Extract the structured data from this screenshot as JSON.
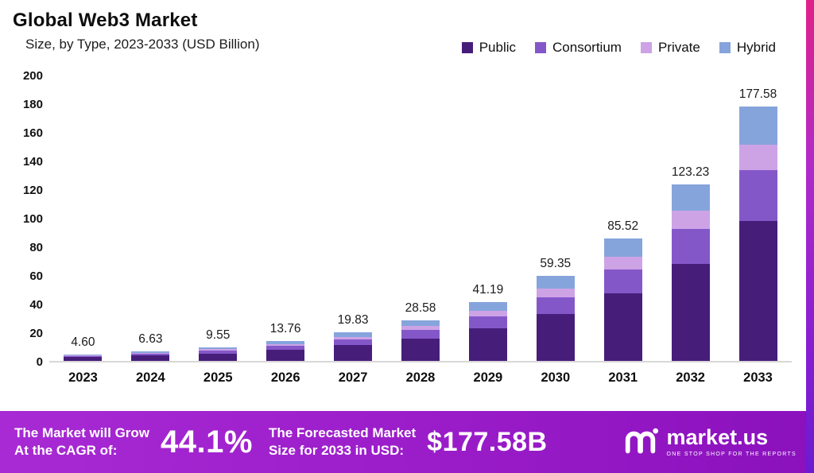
{
  "header": {
    "title": "Global Web3 Market",
    "subtitle": "Size, by Type, 2023-2033 (USD Billion)"
  },
  "legend": [
    {
      "label": "Public",
      "color": "#471d7a"
    },
    {
      "label": "Consortium",
      "color": "#8457c9"
    },
    {
      "label": "Private",
      "color": "#cda3e6"
    },
    {
      "label": "Hybrid",
      "color": "#86a4dc"
    }
  ],
  "chart_data": {
    "type": "bar",
    "stacked": true,
    "title": "Global Web3 Market Size, by Type, 2023-2033 (USD Billion)",
    "xlabel": "",
    "ylabel": "USD Billion",
    "ylim": [
      0,
      200
    ],
    "ytick_step": 20,
    "grid": false,
    "legend_position": "top-right",
    "categories": [
      "2023",
      "2024",
      "2025",
      "2026",
      "2027",
      "2028",
      "2029",
      "2030",
      "2031",
      "2032",
      "2033"
    ],
    "series": [
      {
        "name": "Public",
        "color": "#471d7a",
        "values": [
          2.53,
          3.65,
          5.25,
          7.57,
          10.91,
          15.72,
          22.65,
          32.64,
          47.04,
          67.78,
          97.67
        ]
      },
      {
        "name": "Consortium",
        "color": "#8457c9",
        "values": [
          0.92,
          1.33,
          1.91,
          2.75,
          3.97,
          5.72,
          8.24,
          11.87,
          17.1,
          24.65,
          35.52
        ]
      },
      {
        "name": "Private",
        "color": "#cda3e6",
        "values": [
          0.46,
          0.66,
          0.96,
          1.38,
          1.98,
          2.86,
          4.12,
          5.94,
          8.55,
          12.32,
          17.76
        ]
      },
      {
        "name": "Hybrid",
        "color": "#86a4dc",
        "values": [
          0.69,
          0.99,
          1.43,
          2.06,
          2.97,
          4.28,
          6.18,
          8.9,
          12.83,
          18.48,
          26.63
        ]
      }
    ],
    "totals": [
      "4.60",
      "6.63",
      "9.55",
      "13.76",
      "19.83",
      "28.58",
      "41.19",
      "59.35",
      "85.52",
      "123.23",
      "177.58"
    ]
  },
  "banner": {
    "cagr_label_line1": "The Market will Grow",
    "cagr_label_line2": "At the CAGR of:",
    "cagr_value": "44.1%",
    "forecast_label_line1": "The Forecasted Market",
    "forecast_label_line2": "Size for 2033 in USD:",
    "forecast_value": "$177.58B",
    "brand": "market.us",
    "brand_tagline": "ONE STOP SHOP FOR THE REPORTS"
  }
}
